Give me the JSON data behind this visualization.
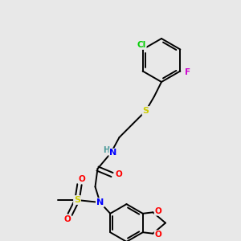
{
  "background_color": "#e8e8e8",
  "atom_colors": {
    "C": "#000000",
    "H": "#4a9a9a",
    "N": "#0000ff",
    "O": "#ff0000",
    "S": "#cccc00",
    "Cl": "#00cc00",
    "F": "#cc00cc"
  },
  "bond_color": "#000000",
  "figure_size": [
    3.0,
    3.0
  ],
  "dpi": 100,
  "lw": 1.4
}
